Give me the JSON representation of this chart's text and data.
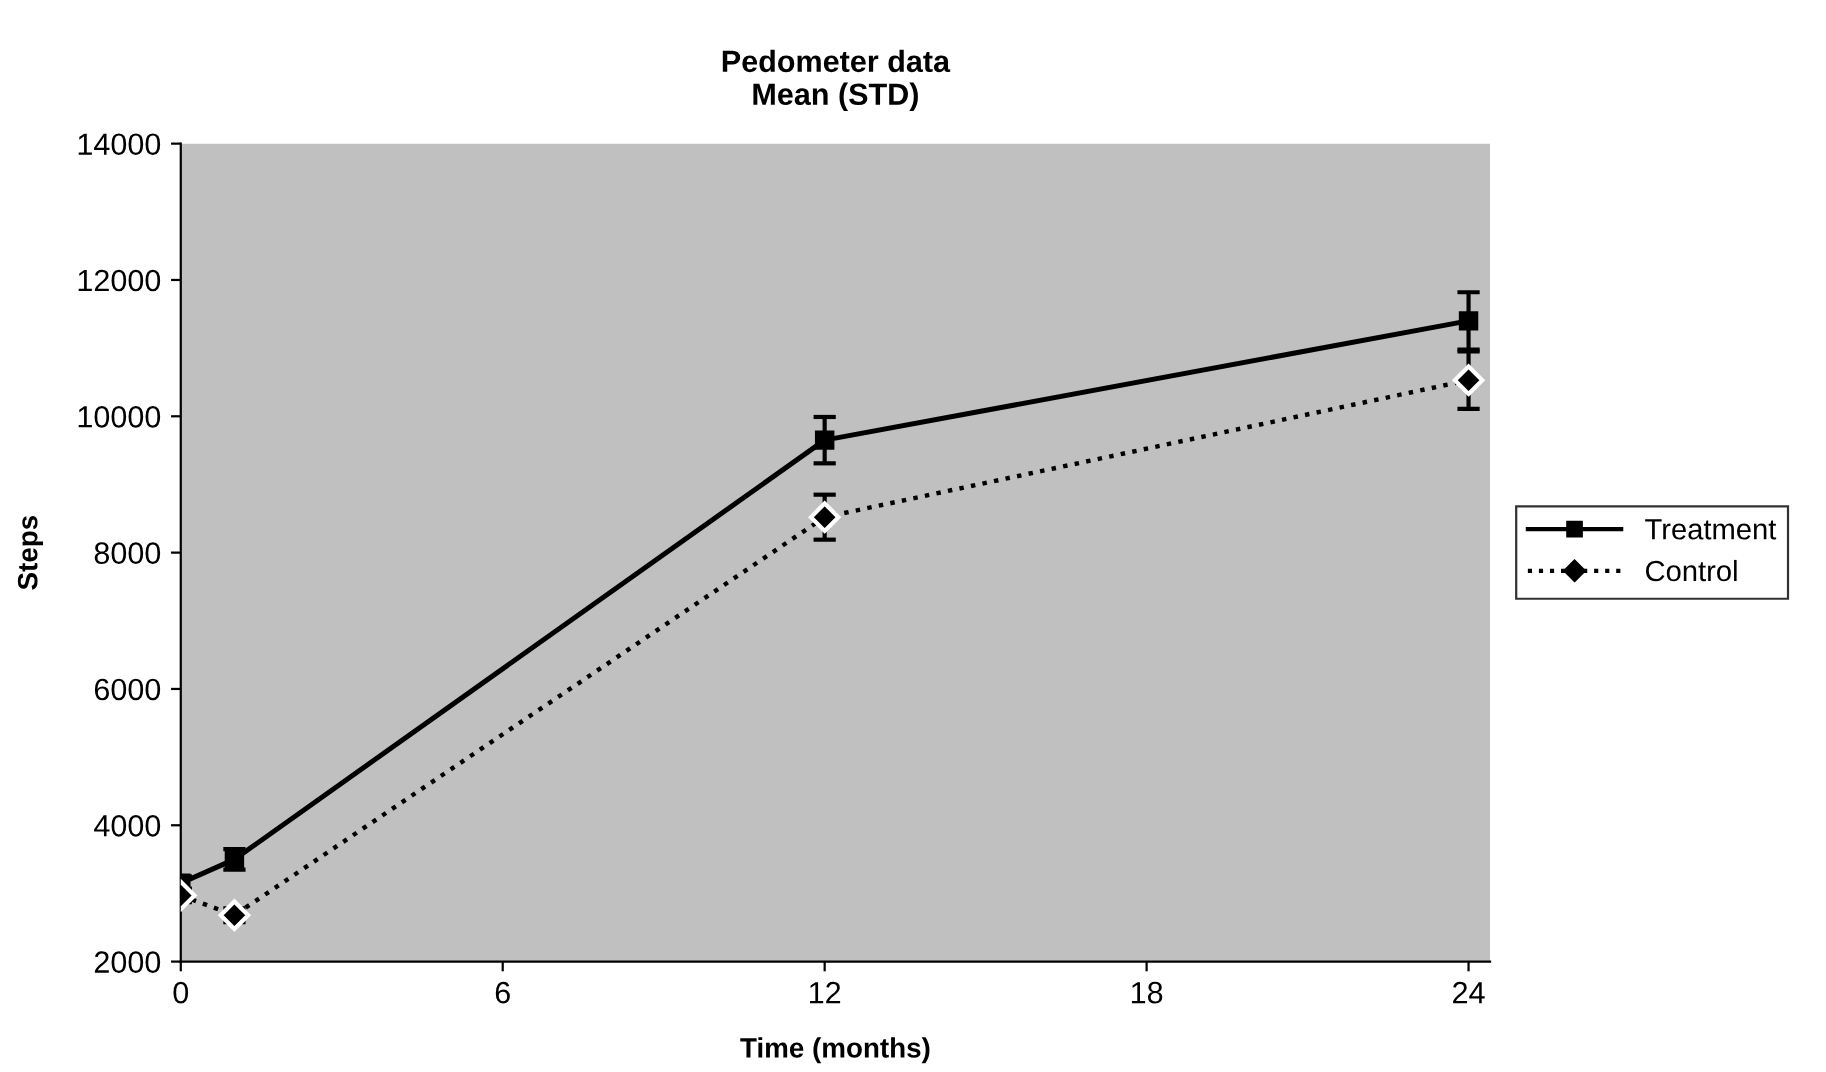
{
  "chart_data": {
    "type": "line",
    "title": "Pedometer data\nMean (STD)",
    "xlabel": "Time (months)",
    "ylabel": "Steps",
    "x": [
      0,
      1,
      12,
      24
    ],
    "series": [
      {
        "name": "Treatment",
        "color": "#000000",
        "marker": "square",
        "line_style": "solid",
        "values": [
          3150,
          3500,
          9650,
          11400
        ],
        "errors": [
          100,
          150,
          340,
          420
        ]
      },
      {
        "name": "Control",
        "color": "#000000",
        "marker": "diamond",
        "line_style": "dotted",
        "values": [
          2970,
          2680,
          8520,
          10530
        ],
        "errors": [
          100,
          100,
          330,
          420
        ]
      }
    ],
    "xlim": [
      0,
      24.4
    ],
    "xticks": [
      0,
      6,
      12,
      18,
      24
    ],
    "ylim": [
      2000,
      14000
    ],
    "yticks": [
      2000,
      4000,
      6000,
      8000,
      10000,
      12000,
      14000
    ],
    "grid": false,
    "legend": "right"
  }
}
